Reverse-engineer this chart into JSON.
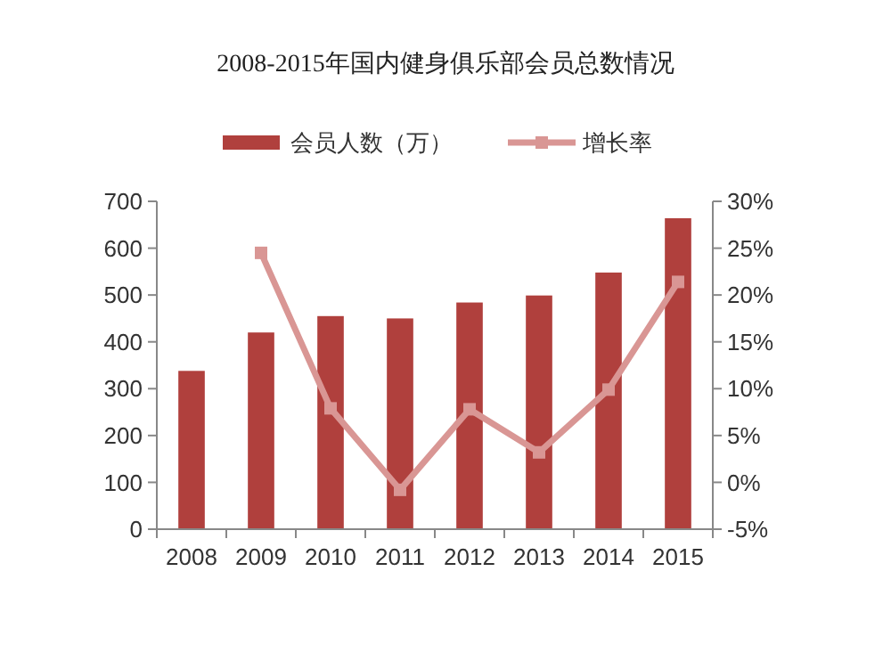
{
  "chart_data": {
    "type": "bar",
    "title": "2008-2015年国内健身俱乐部会员总数情况",
    "categories": [
      "2008",
      "2009",
      "2010",
      "2011",
      "2012",
      "2013",
      "2014",
      "2015"
    ],
    "series": [
      {
        "name": "会员人数（万）",
        "color": "#b0403d",
        "values": [
          338,
          420,
          455,
          450,
          484,
          499,
          548,
          664
        ]
      },
      {
        "name": "增长率",
        "type": "line",
        "axis": "y2",
        "color": "#d99694",
        "marker": "square",
        "values": [
          null,
          24.5,
          7.9,
          -0.8,
          7.8,
          3.2,
          9.9,
          21.4
        ]
      }
    ],
    "ylim": [
      0,
      700
    ],
    "yticks": [
      0,
      100,
      200,
      300,
      400,
      500,
      600,
      700
    ],
    "y2lim": [
      -5,
      30
    ],
    "y2ticks": [
      {
        "value": -5,
        "label": "-5%"
      },
      {
        "value": 0,
        "label": "0%"
      },
      {
        "value": 5,
        "label": "5%"
      },
      {
        "value": 10,
        "label": "10%"
      },
      {
        "value": 15,
        "label": "15%"
      },
      {
        "value": 20,
        "label": "20%"
      },
      {
        "value": 25,
        "label": "25%"
      },
      {
        "value": 30,
        "label": "30%"
      }
    ],
    "legend": "top",
    "grid": false
  }
}
